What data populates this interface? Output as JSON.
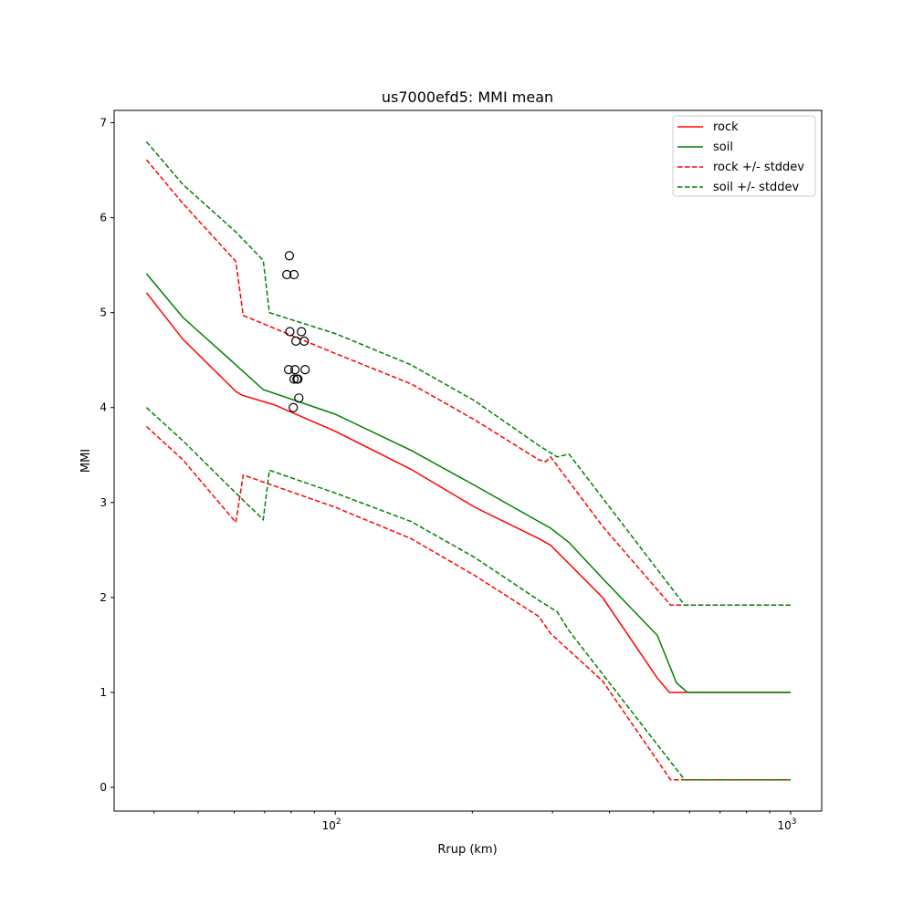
{
  "chart_data": {
    "type": "line",
    "title": "us7000efd5: MMI mean",
    "xlabel": "Rrup (km)",
    "ylabel": "MMI",
    "xscale": "log",
    "xlim": [
      32.7,
      1170
    ],
    "ylim": [
      -0.25,
      7.13
    ],
    "yticks": [
      "0",
      "1",
      "2",
      "3",
      "4",
      "5",
      "6",
      "7"
    ],
    "xticks": [
      {
        "base": "10",
        "exp": "2",
        "value": 100
      },
      {
        "base": "10",
        "exp": "3",
        "value": 1000
      }
    ],
    "grid": false,
    "legend_position": "top-right",
    "colors": {
      "rock": "#ff0000",
      "soil": "#008000"
    },
    "series": [
      {
        "name": "rock",
        "style": "solid",
        "color": "#ff0000",
        "x": [
          38.5,
          46.3,
          60.5,
          62.5,
          73.4,
          100,
          146.7,
          202.6,
          279.9,
          297.2,
          386.5,
          509.8,
          541.5,
          1000
        ],
        "y": [
          5.21,
          4.72,
          4.17,
          4.13,
          4.03,
          3.75,
          3.35,
          2.95,
          2.62,
          2.55,
          2.0,
          1.15,
          1.0,
          1.0
        ]
      },
      {
        "name": "soil",
        "style": "solid",
        "color": "#008000",
        "x": [
          38.5,
          46.3,
          60.5,
          69.5,
          100,
          146.7,
          202.6,
          279.9,
          297.2,
          326,
          386.5,
          509.8,
          561.7,
          593.6,
          1000
        ],
        "y": [
          5.41,
          4.95,
          4.45,
          4.19,
          3.93,
          3.55,
          3.18,
          2.8,
          2.73,
          2.58,
          2.2,
          1.6,
          1.1,
          1.0,
          1.0
        ]
      },
      {
        "name": "rock +/- stddev",
        "style": "dashed",
        "color": "#ff0000",
        "upper": {
          "x": [
            38.5,
            46.3,
            60.5,
            62.8,
            100,
            146.7,
            202.6,
            280,
            290,
            297.2,
            386.5,
            545,
            1000
          ],
          "y": [
            6.61,
            6.15,
            5.54,
            4.97,
            4.57,
            4.25,
            3.87,
            3.45,
            3.43,
            3.48,
            2.75,
            1.92,
            1.92
          ]
        },
        "lower": {
          "x": [
            38.5,
            46.3,
            60.5,
            62.8,
            100,
            146.7,
            202.6,
            280,
            297.2,
            386.5,
            545,
            1000
          ],
          "y": [
            3.8,
            3.45,
            2.79,
            3.29,
            2.95,
            2.62,
            2.23,
            1.8,
            1.62,
            1.12,
            0.08,
            0.08
          ]
        }
      },
      {
        "name": "soil +/- stddev",
        "style": "dashed",
        "color": "#008000",
        "upper": {
          "x": [
            38.5,
            46.3,
            60.5,
            69.5,
            71.7,
            100,
            146.7,
            202.6,
            280,
            307,
            326,
            585,
            1000
          ],
          "y": [
            6.8,
            6.35,
            5.85,
            5.55,
            5.0,
            4.78,
            4.45,
            4.07,
            3.6,
            3.48,
            3.51,
            1.92,
            1.92
          ]
        },
        "lower": {
          "x": [
            38.5,
            46.3,
            60.5,
            69.5,
            71.7,
            100,
            146.7,
            202.6,
            280,
            307,
            326,
            585,
            1000
          ],
          "y": [
            4.0,
            3.65,
            3.1,
            2.82,
            3.34,
            3.1,
            2.8,
            2.42,
            1.97,
            1.85,
            1.65,
            0.08,
            0.08
          ]
        }
      }
    ],
    "observations": {
      "marker": "open-circle",
      "x": [
        79.3,
        78.3,
        81.2,
        79.5,
        84.3,
        82.0,
        85.5,
        79.0,
        81.6,
        85.9,
        81.2,
        82.4,
        82.8,
        83.2,
        80.9
      ],
      "y": [
        5.6,
        5.4,
        5.4,
        4.8,
        4.8,
        4.7,
        4.7,
        4.4,
        4.4,
        4.4,
        4.3,
        4.3,
        4.3,
        4.1,
        4.0
      ]
    }
  }
}
